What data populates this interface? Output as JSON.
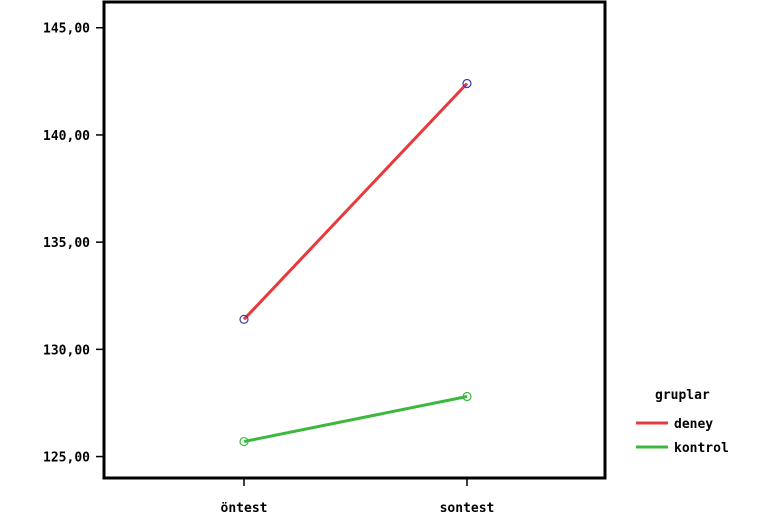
{
  "chart_data": {
    "type": "line",
    "categories": [
      "öntest",
      "sontest"
    ],
    "series": [
      {
        "name": "deney",
        "values": [
          131.4,
          142.4
        ],
        "color": "#e8393c",
        "marker_color": "#3a3aa8"
      },
      {
        "name": "kontrol",
        "values": [
          125.7,
          127.8
        ],
        "color": "#3cb83c",
        "marker_color": "#3cb83c"
      }
    ],
    "yticks": [
      "125,00",
      "130,00",
      "135,00",
      "140,00",
      "145,00"
    ],
    "ytick_values": [
      125,
      130,
      135,
      140,
      145
    ],
    "ylim": [
      124.0,
      146.2
    ],
    "title": "",
    "xlabel": "",
    "ylabel": "",
    "legend": {
      "title": "gruplar",
      "placement": "right"
    },
    "grid": false
  }
}
